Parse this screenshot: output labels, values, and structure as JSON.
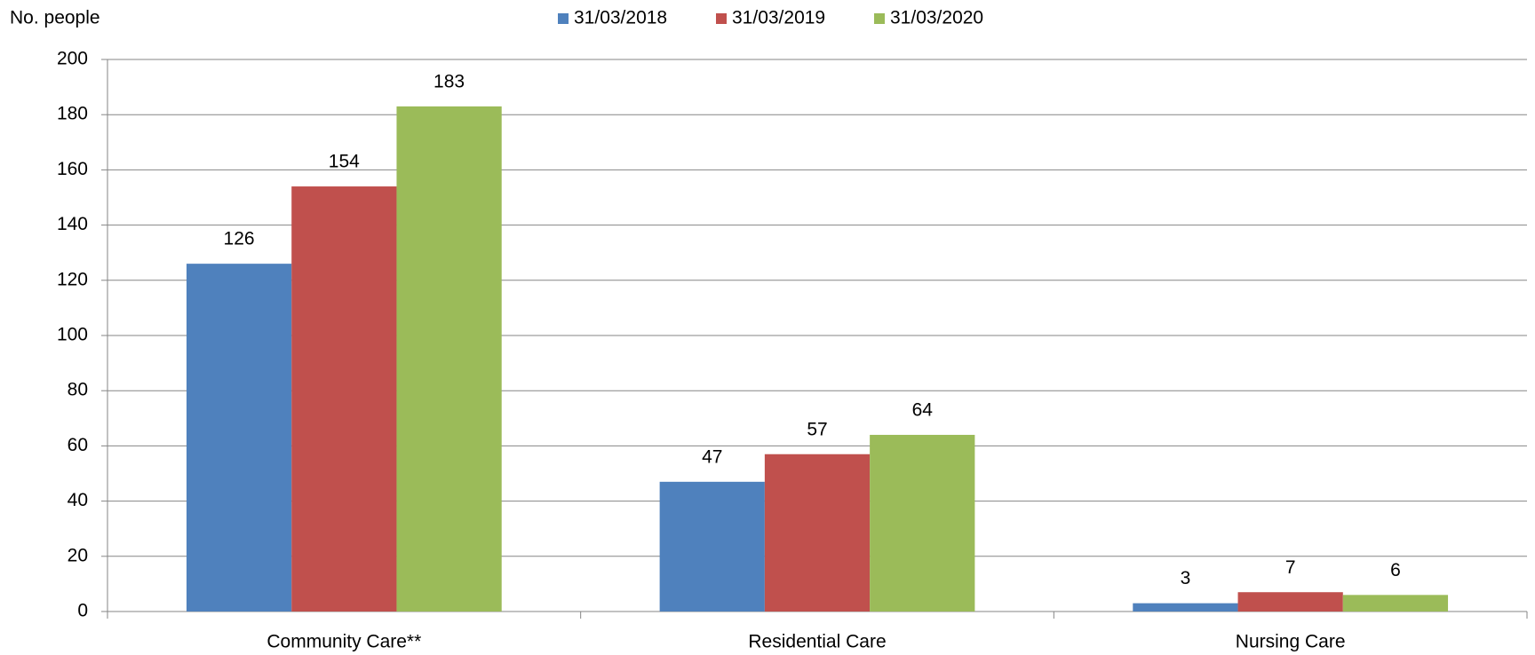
{
  "chart_data": {
    "type": "bar",
    "y_axis_label": "No. people",
    "categories": [
      "Community Care**",
      "Residential Care",
      "Nursing Care"
    ],
    "series": [
      {
        "name": "31/03/2018",
        "color": "#4f81bd",
        "values": [
          126,
          47,
          3
        ]
      },
      {
        "name": "31/03/2019",
        "color": "#c0504d",
        "values": [
          154,
          57,
          7
        ]
      },
      {
        "name": "31/03/2020",
        "color": "#9bbb59",
        "values": [
          183,
          64,
          6
        ]
      }
    ],
    "ylim": [
      0,
      200
    ],
    "yticks": [
      0,
      20,
      40,
      60,
      80,
      100,
      120,
      140,
      160,
      180,
      200
    ],
    "grid": true,
    "legend": "top"
  }
}
